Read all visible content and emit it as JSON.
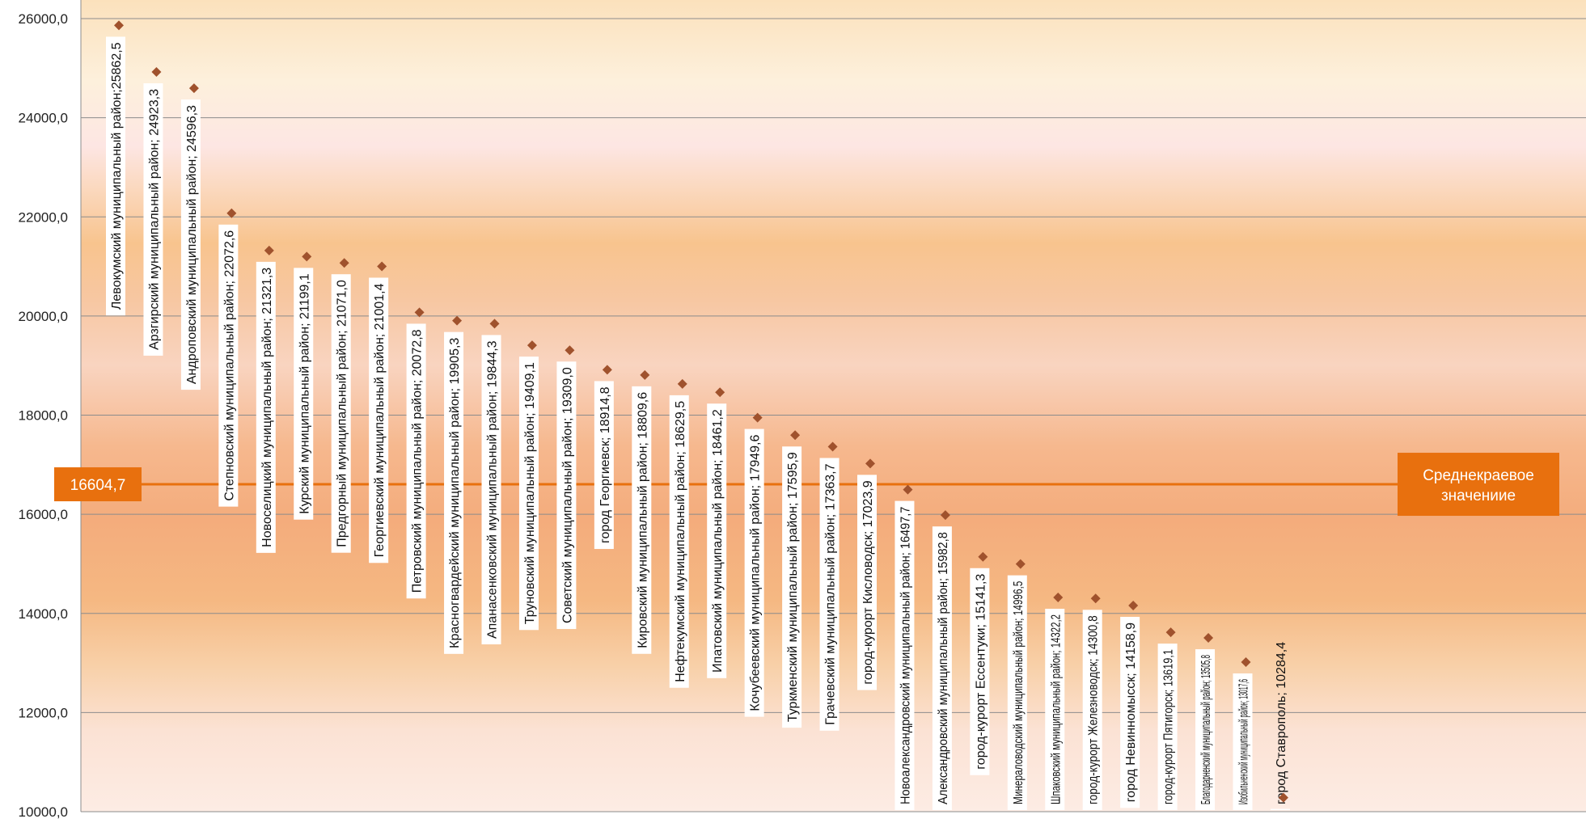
{
  "chart_data": {
    "type": "scatter",
    "title": "",
    "xlabel": "",
    "ylabel": "",
    "ylim": [
      10000,
      26000
    ],
    "yticks": [
      "10000,0",
      "12000,0",
      "14000,0",
      "16000,0",
      "18000,0",
      "20000,0",
      "22000,0",
      "24000,0",
      "26000,0"
    ],
    "ytick_values": [
      10000,
      12000,
      14000,
      16000,
      18000,
      20000,
      22000,
      24000,
      26000
    ],
    "grid": true,
    "marker_color": "#A0522D",
    "average": {
      "value": 16604.7,
      "value_label": "16604,7",
      "label": "Среднекраевое значениие",
      "color": "#E8700E"
    },
    "points": [
      {
        "y": 25862.5,
        "label": "Левокумский муниципальный район;25862,5"
      },
      {
        "y": 24923.3,
        "label": "Арзгирский муниципальный район; 24923,3"
      },
      {
        "y": 24596.3,
        "label": "Андроповский муниципальный район; 24596,3"
      },
      {
        "y": 22072.6,
        "label": "Степновский муниципальный район; 22072,6"
      },
      {
        "y": 21321.3,
        "label": "Новоселицкий муниципальный район; 21321,3"
      },
      {
        "y": 21199.1,
        "label": "Курский муниципальный район; 21199,1"
      },
      {
        "y": 21071.0,
        "label": "Предгорный муниципальный район; 21071,0"
      },
      {
        "y": 21001.4,
        "label": "Георгиевский муниципальный район; 21001,4"
      },
      {
        "y": 20072.8,
        "label": "Петровский муниципальный район; 20072,8"
      },
      {
        "y": 19905.3,
        "label": "Красногвардейский муниципальный район; 19905,3"
      },
      {
        "y": 19844.3,
        "label": "Апанасенковский муниципальный район; 19844,3"
      },
      {
        "y": 19409.1,
        "label": "Труновский муниципальный район; 19409,1"
      },
      {
        "y": 19309.0,
        "label": "Советский муниципальный район; 19309,0"
      },
      {
        "y": 18914.8,
        "label": "город Георгиевск; 18914,8"
      },
      {
        "y": 18809.6,
        "label": "Кировский муниципальный район; 18809,6"
      },
      {
        "y": 18629.5,
        "label": "Нефтекумский муниципальный район; 18629,5"
      },
      {
        "y": 18461.2,
        "label": "Ипатовский муниципальный район; 18461,2"
      },
      {
        "y": 17949.6,
        "label": "Кочубеевский муниципальный район; 17949,6"
      },
      {
        "y": 17595.9,
        "label": "Туркменский муниципальный район; 17595,9"
      },
      {
        "y": 17363.7,
        "label": "Грачевский муниципальный район; 17363,7"
      },
      {
        "y": 17023.9,
        "label": "город-курорт Кисловодск; 17023,9"
      },
      {
        "y": 16497.7,
        "label": "Новоалександровский муниципальный район; 16497,7"
      },
      {
        "y": 15982.8,
        "label": "Александровский муниципальный район; 15982,8"
      },
      {
        "y": 15141.3,
        "label": "город-курорт Ессентуки; 15141,3"
      },
      {
        "y": 14996.5,
        "label": "Минераловодский муниципальный район; 14996,5"
      },
      {
        "y": 14322.2,
        "label": "Шпаковский муниципальный район; 14322,2"
      },
      {
        "y": 14300.8,
        "label": "город-курорт Железноводск; 14300,8"
      },
      {
        "y": 14158.9,
        "label": "город Невинномысск; 14158,9"
      },
      {
        "y": 13619.1,
        "label": "город-курорт Пятигорск; 13619,1"
      },
      {
        "y": 13505.8,
        "label": "Благодарненский муниципальный район; 13505,8"
      },
      {
        "y": 13017.6,
        "label": "Изобильненский муниципальный район; 13017,6"
      },
      {
        "y": 10284.4,
        "label": "город Ставрополь; 10284,4"
      }
    ]
  }
}
